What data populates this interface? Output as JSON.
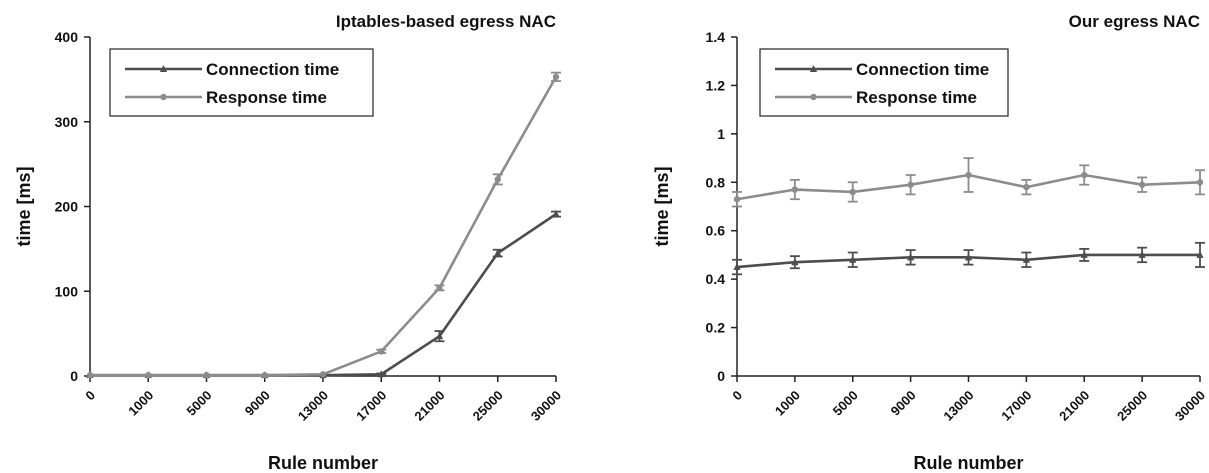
{
  "chart_data": [
    {
      "type": "line",
      "title": "Iptables-based egress NAC",
      "xlabel": "Rule number",
      "ylabel": "time [ms]",
      "categories": [
        "0",
        "1000",
        "5000",
        "9000",
        "13000",
        "17000",
        "21000",
        "25000",
        "30000"
      ],
      "ylim": [
        0,
        400
      ],
      "yticks": [
        0,
        100,
        200,
        300,
        400
      ],
      "legend_position": "top-left",
      "series": [
        {
          "name": "Connection time",
          "color": "#4d4d4d",
          "marker": "triangle",
          "values": [
            1,
            1,
            1,
            1,
            1,
            2,
            47,
            145,
            191
          ],
          "errors": [
            0.5,
            0.5,
            0.5,
            0.5,
            0.5,
            1,
            6,
            4,
            3
          ]
        },
        {
          "name": "Response time",
          "color": "#8c8c8c",
          "marker": "circle",
          "values": [
            1,
            1,
            1,
            1,
            2,
            29,
            104,
            232,
            353
          ],
          "errors": [
            0.5,
            0.5,
            0.5,
            0.5,
            0.5,
            2,
            3,
            6,
            5
          ]
        }
      ]
    },
    {
      "type": "line",
      "title": "Our egress NAC",
      "xlabel": "Rule number",
      "ylabel": "time [ms]",
      "categories": [
        "0",
        "1000",
        "5000",
        "9000",
        "13000",
        "17000",
        "21000",
        "25000",
        "30000"
      ],
      "ylim": [
        0,
        1.4
      ],
      "yticks": [
        0,
        0.2,
        0.4,
        0.6,
        0.8,
        1,
        1.2,
        1.4
      ],
      "legend_position": "top-left",
      "series": [
        {
          "name": "Connection time",
          "color": "#4d4d4d",
          "marker": "triangle",
          "values": [
            0.45,
            0.47,
            0.48,
            0.49,
            0.49,
            0.48,
            0.5,
            0.5,
            0.5
          ],
          "errors": [
            0.03,
            0.025,
            0.03,
            0.03,
            0.03,
            0.03,
            0.025,
            0.03,
            0.05
          ]
        },
        {
          "name": "Response time",
          "color": "#8c8c8c",
          "marker": "circle",
          "values": [
            0.73,
            0.77,
            0.76,
            0.79,
            0.83,
            0.78,
            0.83,
            0.79,
            0.8
          ],
          "errors": [
            0.03,
            0.04,
            0.04,
            0.04,
            0.07,
            0.03,
            0.04,
            0.03,
            0.05
          ]
        }
      ]
    }
  ]
}
